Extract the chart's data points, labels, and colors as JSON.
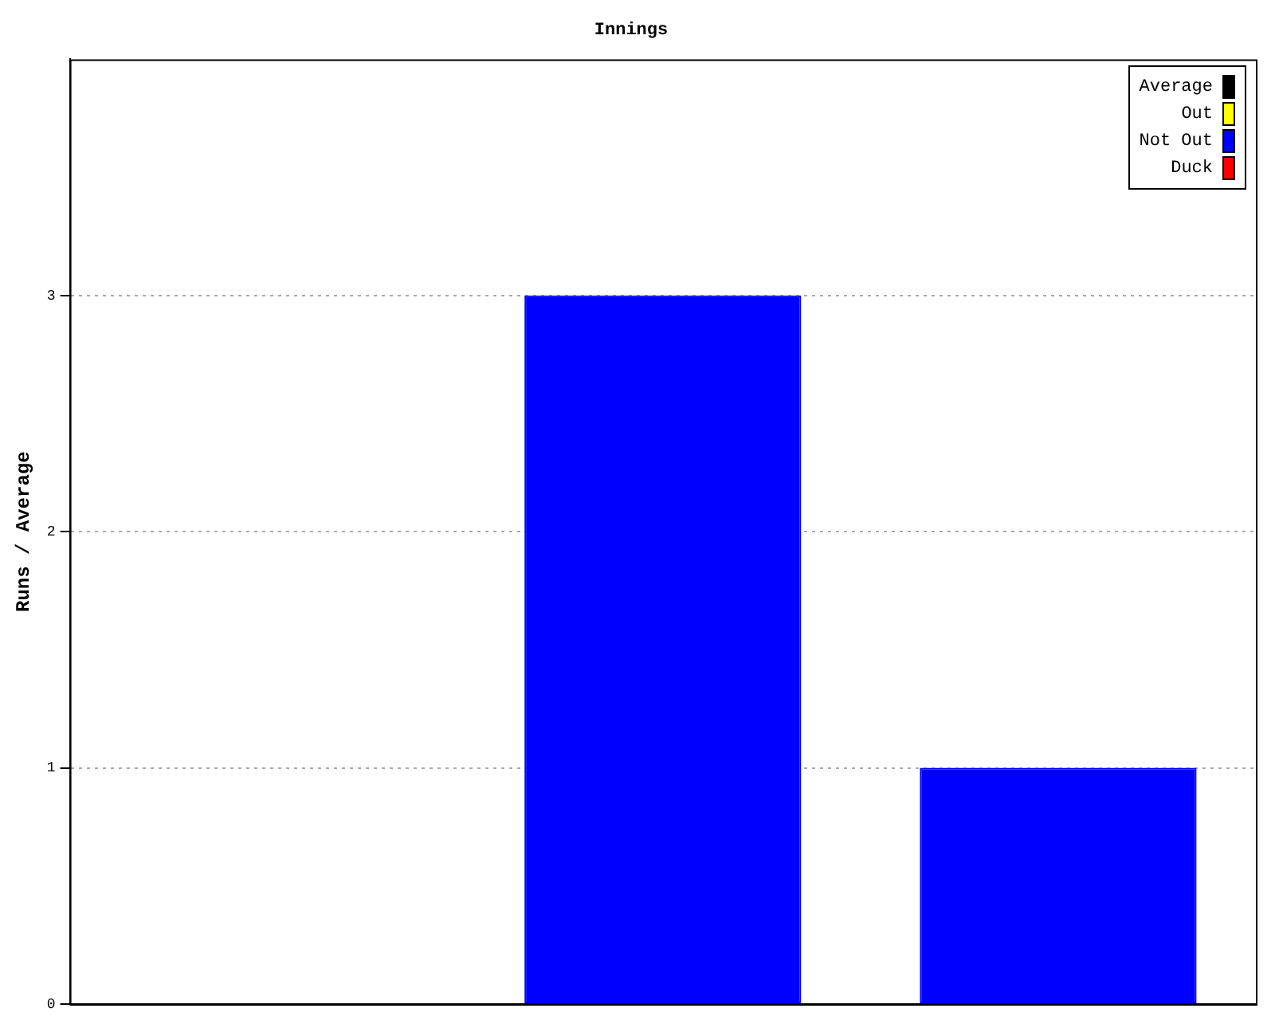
{
  "chart_data": {
    "type": "bar",
    "title": "Innings",
    "ylabel": "Runs / Average",
    "categories": [
      null,
      null,
      null
    ],
    "series": [
      {
        "name": "Average",
        "color": "#000000",
        "values": [
          null,
          null,
          null
        ]
      },
      {
        "name": "Out",
        "color": "#ffff00",
        "values": [
          null,
          null,
          null
        ]
      },
      {
        "name": "Not Out",
        "color": "#0000ff",
        "values": [
          0,
          3,
          1
        ]
      },
      {
        "name": "Duck",
        "color": "#ff0000",
        "values": [
          null,
          null,
          null
        ]
      }
    ],
    "ylim": [
      0,
      4
    ],
    "yticks": [
      0,
      1,
      2,
      3
    ],
    "grid": "y",
    "legend": "top right"
  }
}
